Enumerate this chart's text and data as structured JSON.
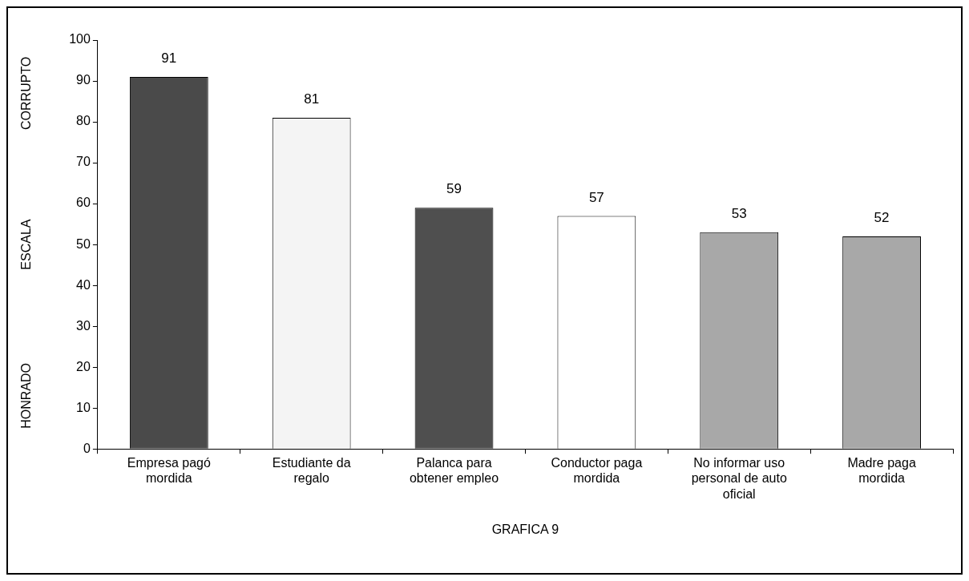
{
  "chart_data": {
    "type": "bar",
    "xlabel": "GRAFICA 9",
    "ylabel": "ESCALA",
    "annotations": [
      "HONRADO",
      "CORRUPTO"
    ],
    "categories": [
      "Empresa pagó mordida",
      "Estudiante da regalo",
      "Palanca para obtener empleo",
      "Conductor paga mordida",
      "No informar uso personal de auto oficial",
      "Madre paga mordida"
    ],
    "values": [
      91,
      81,
      59,
      57,
      53,
      52
    ],
    "colors": [
      "#4a4a4a",
      "#f4f4f4",
      "#4f4f4f",
      "#ffffff",
      "#a8a8a8",
      "#a8a8a8"
    ],
    "ylim": [
      0,
      100
    ],
    "yticks": [
      0,
      10,
      20,
      30,
      40,
      50,
      60,
      70,
      80,
      90,
      100
    ],
    "grid": false,
    "legend": false,
    "data_labels": true
  }
}
